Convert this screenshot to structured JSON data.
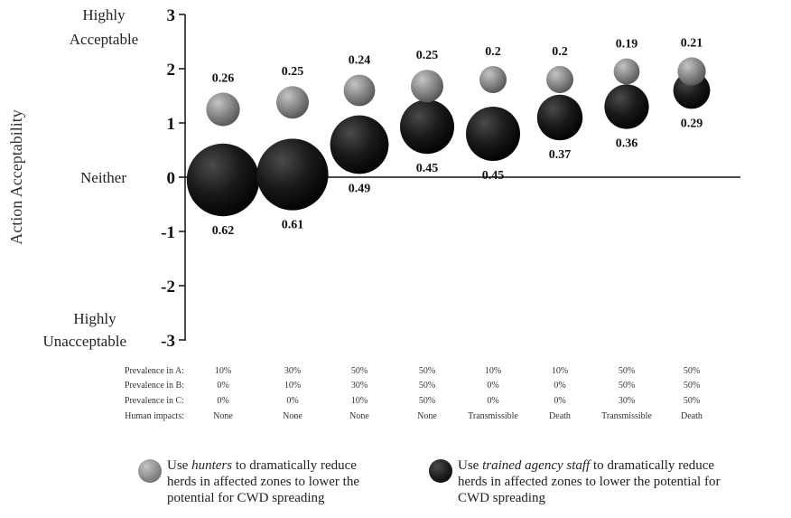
{
  "chart_data": {
    "type": "scatter",
    "subtype": "bubble",
    "ylabel": "Action Acceptability",
    "ylim": [
      -3,
      3
    ],
    "yticks": [
      "-3",
      "-2",
      "-1",
      "0",
      "1",
      "2",
      "3"
    ],
    "y_qualitative_labels": {
      "top_line1": "Highly",
      "top_line2": "Acceptable",
      "middle": "Neither",
      "bottom_line1": "Highly",
      "bottom_line2": "Unacceptable"
    },
    "conditions": {
      "row_labels": [
        "Prevalence in A:",
        "Prevalence in B:",
        "Prevalence in C:",
        "Human impacts:"
      ],
      "columns": [
        [
          "10%",
          "0%",
          "0%",
          "None"
        ],
        [
          "30%",
          "10%",
          "0%",
          "None"
        ],
        [
          "50%",
          "30%",
          "10%",
          "None"
        ],
        [
          "50%",
          "50%",
          "50%",
          "None"
        ],
        [
          "10%",
          "0%",
          "0%",
          "Transmissible"
        ],
        [
          "10%",
          "0%",
          "0%",
          "Death"
        ],
        [
          "50%",
          "50%",
          "30%",
          "Transmissible"
        ],
        [
          "50%",
          "50%",
          "50%",
          "Death"
        ]
      ]
    },
    "series": [
      {
        "color": "#8a8a8a",
        "y": [
          1.25,
          1.38,
          1.6,
          1.68,
          1.8,
          1.8,
          1.95,
          1.95
        ],
        "size_labels": [
          "0.26",
          "0.25",
          "0.24",
          "0.25",
          "0.2",
          "0.2",
          "0.19",
          "0.21"
        ]
      },
      {
        "color": "#1a1a1a",
        "y": [
          -0.05,
          0.05,
          0.6,
          0.93,
          0.8,
          1.1,
          1.3,
          1.6
        ],
        "size_labels": [
          "0.62",
          "0.61",
          "0.49",
          "0.45",
          "0.45",
          "0.37",
          "0.36",
          "0.29"
        ]
      }
    ],
    "legend": {
      "position": "bottom",
      "items": [
        {
          "color": "#8a8a8a",
          "before": "Use ",
          "emph": "hunters",
          "after": " to dramatically reduce",
          "lines": [
            "herds in affected zones to lower the",
            "potential for CWD spreading"
          ]
        },
        {
          "color": "#1a1a1a",
          "before": "Use ",
          "emph": "trained agency staff",
          "after": " to dramatically reduce",
          "lines": [
            "herds in affected zones to lower the potential for",
            "CWD spreading"
          ]
        }
      ]
    },
    "grid": false
  }
}
